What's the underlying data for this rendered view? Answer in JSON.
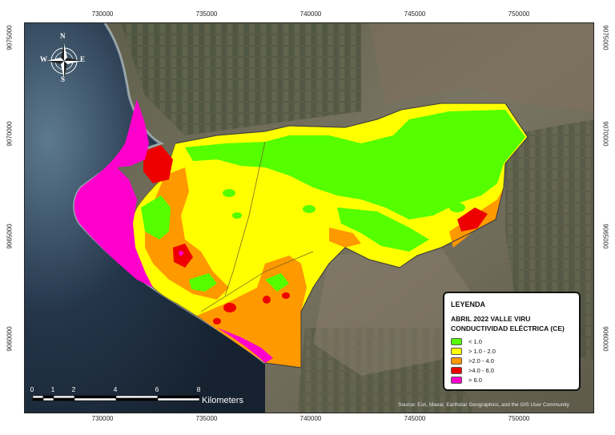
{
  "axes": {
    "top_ticks": [
      "730000",
      "735000",
      "740000",
      "745000",
      "750000"
    ],
    "bottom_ticks": [
      "730000",
      "735000",
      "740000",
      "745000",
      "750000"
    ],
    "left_ticks": [
      "9075000",
      "9070000",
      "9065000",
      "9060000"
    ],
    "right_ticks": [
      "9075000",
      "9070000",
      "9065000",
      "9060000"
    ]
  },
  "compass": {
    "n": "N",
    "s": "S",
    "e": "E",
    "w": "W",
    "icon": "compass-rose-icon"
  },
  "legend": {
    "title": "LEYENDA",
    "subtitle1": "ABRIL 2022 VALLE VIRU",
    "subtitle2": "CONDUCTIVIDAD ELÉCTRICA (CE)",
    "items": [
      {
        "label": "< 1.0",
        "color": "#55ff00"
      },
      {
        "label": "> 1.0 - 2.0",
        "color": "#ffff00"
      },
      {
        "label": ">2.0 - 4.0",
        "color": "#ff9900"
      },
      {
        "label": ">4.0 - 6.0",
        "color": "#ee0000"
      },
      {
        "label": "> 6.0",
        "color": "#ff00cc"
      }
    ]
  },
  "scale_bar": {
    "labels": [
      "0",
      "1",
      "2",
      "4",
      "6",
      "8"
    ],
    "unit": "Kilometers"
  },
  "credits": "Source: Esri, Maxar, Earthstar Geographics, and the GIS User Community"
}
